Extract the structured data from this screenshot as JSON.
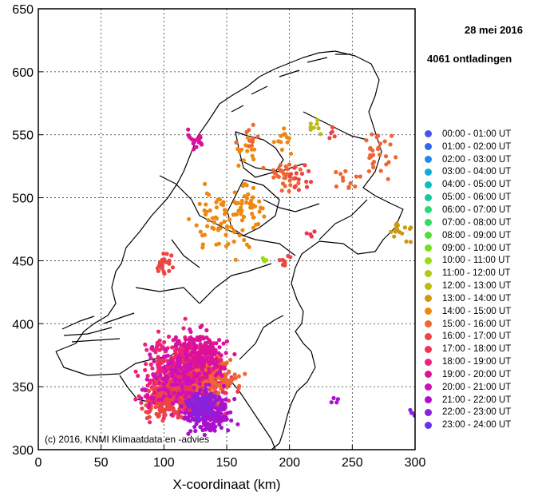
{
  "header": {
    "date": "28 mei 2016",
    "discharge_count": "4061 ontladingen"
  },
  "copyright": "(c) 2016, KNMI Klimaatdata en -advies",
  "axes": {
    "xlabel": "X-coordinaat (km)",
    "x_ticks": [
      "0",
      "50",
      "100",
      "150",
      "200",
      "250",
      "300"
    ],
    "y_ticks": [
      "300",
      "350",
      "400",
      "450",
      "500",
      "550",
      "600",
      "650"
    ]
  },
  "legend": [
    {
      "label": "00:00 - 01:00 UT",
      "color": "#4455ee"
    },
    {
      "label": "01:00 - 02:00 UT",
      "color": "#3366ee"
    },
    {
      "label": "02:00 - 03:00 UT",
      "color": "#2288ee"
    },
    {
      "label": "03:00 - 04:00 UT",
      "color": "#11aadd"
    },
    {
      "label": "04:00 - 05:00 UT",
      "color": "#11bbbb"
    },
    {
      "label": "05:00 - 06:00 UT",
      "color": "#11cc99"
    },
    {
      "label": "06:00 - 07:00 UT",
      "color": "#22dd77"
    },
    {
      "label": "07:00 - 08:00 UT",
      "color": "#33dd55"
    },
    {
      "label": "08:00 - 09:00 UT",
      "color": "#55dd33"
    },
    {
      "label": "09:00 - 10:00 UT",
      "color": "#77dd22"
    },
    {
      "label": "10:00 - 11:00 UT",
      "color": "#99dd11"
    },
    {
      "label": "11:00 - 12:00 UT",
      "color": "#aacc11"
    },
    {
      "label": "12:00 - 13:00 UT",
      "color": "#bbbb11"
    },
    {
      "label": "13:00 - 14:00 UT",
      "color": "#cc9911"
    },
    {
      "label": "14:00 - 15:00 UT",
      "color": "#ee8811"
    },
    {
      "label": "15:00 - 16:00 UT",
      "color": "#ee6633"
    },
    {
      "label": "16:00 - 17:00 UT",
      "color": "#ee4444"
    },
    {
      "label": "17:00 - 18:00 UT",
      "color": "#ee3355"
    },
    {
      "label": "18:00 - 19:00 UT",
      "color": "#ee2277"
    },
    {
      "label": "19:00 - 20:00 UT",
      "color": "#dd1199"
    },
    {
      "label": "20:00 - 21:00 UT",
      "color": "#cc11bb"
    },
    {
      "label": "21:00 - 22:00 UT",
      "color": "#aa11cc"
    },
    {
      "label": "22:00 - 23:00 UT",
      "color": "#8822dd"
    },
    {
      "label": "23:00 - 24:00 UT",
      "color": "#6633ee"
    }
  ],
  "map": {
    "x_range": [
      0,
      300
    ],
    "y_range": [
      300,
      650
    ],
    "grid": true,
    "strike_clusters": [
      {
        "hour": 19,
        "x": 125,
        "y": 545,
        "spread": 4,
        "n": 18
      },
      {
        "hour": 15,
        "x": 195,
        "y": 518,
        "spread": 6,
        "n": 30
      },
      {
        "hour": 16,
        "x": 210,
        "y": 515,
        "spread": 5,
        "n": 15
      },
      {
        "hour": 15,
        "x": 268,
        "y": 535,
        "spread": 8,
        "n": 28
      },
      {
        "hour": 15,
        "x": 250,
        "y": 515,
        "spread": 6,
        "n": 12
      },
      {
        "hour": 15,
        "x": 168,
        "y": 548,
        "spread": 4,
        "n": 12
      },
      {
        "hour": 14,
        "x": 195,
        "y": 545,
        "spread": 6,
        "n": 12
      },
      {
        "hour": 14,
        "x": 165,
        "y": 537,
        "spread": 5,
        "n": 12
      },
      {
        "hour": 12,
        "x": 220,
        "y": 557,
        "spread": 3,
        "n": 8
      },
      {
        "hour": 16,
        "x": 235,
        "y": 550,
        "spread": 3,
        "n": 5
      },
      {
        "hour": 14,
        "x": 150,
        "y": 480,
        "spread": 12,
        "n": 70
      },
      {
        "hour": 14,
        "x": 168,
        "y": 495,
        "spread": 7,
        "n": 30
      },
      {
        "hour": 13,
        "x": 288,
        "y": 473,
        "spread": 4,
        "n": 16
      },
      {
        "hour": 16,
        "x": 100,
        "y": 447,
        "spread": 4,
        "n": 22
      },
      {
        "hour": 16,
        "x": 195,
        "y": 450,
        "spread": 3,
        "n": 8
      },
      {
        "hour": 10,
        "x": 180,
        "y": 450,
        "spread": 1.5,
        "n": 5
      },
      {
        "hour": 17,
        "x": 215,
        "y": 470,
        "spread": 2,
        "n": 4
      },
      {
        "hour": 18,
        "x": 115,
        "y": 360,
        "spread": 15,
        "n": 500
      },
      {
        "hour": 17,
        "x": 125,
        "y": 350,
        "spread": 12,
        "n": 280
      },
      {
        "hour": 15,
        "x": 140,
        "y": 360,
        "spread": 9,
        "n": 120
      },
      {
        "hour": 16,
        "x": 100,
        "y": 340,
        "spread": 8,
        "n": 120
      },
      {
        "hour": 19,
        "x": 130,
        "y": 375,
        "spread": 10,
        "n": 180
      },
      {
        "hour": 20,
        "x": 110,
        "y": 355,
        "spread": 12,
        "n": 120
      },
      {
        "hour": 21,
        "x": 135,
        "y": 330,
        "spread": 8,
        "n": 220
      },
      {
        "hour": 22,
        "x": 130,
        "y": 335,
        "spread": 6,
        "n": 90
      },
      {
        "hour": 19,
        "x": 90,
        "y": 340,
        "spread": 3,
        "n": 8
      },
      {
        "hour": 21,
        "x": 236,
        "y": 340,
        "spread": 1.5,
        "n": 4
      },
      {
        "hour": 22,
        "x": 295,
        "y": 328,
        "spread": 2,
        "n": 4
      },
      {
        "hour": 15,
        "x": 160,
        "y": 350,
        "spread": 1,
        "n": 2
      }
    ]
  }
}
